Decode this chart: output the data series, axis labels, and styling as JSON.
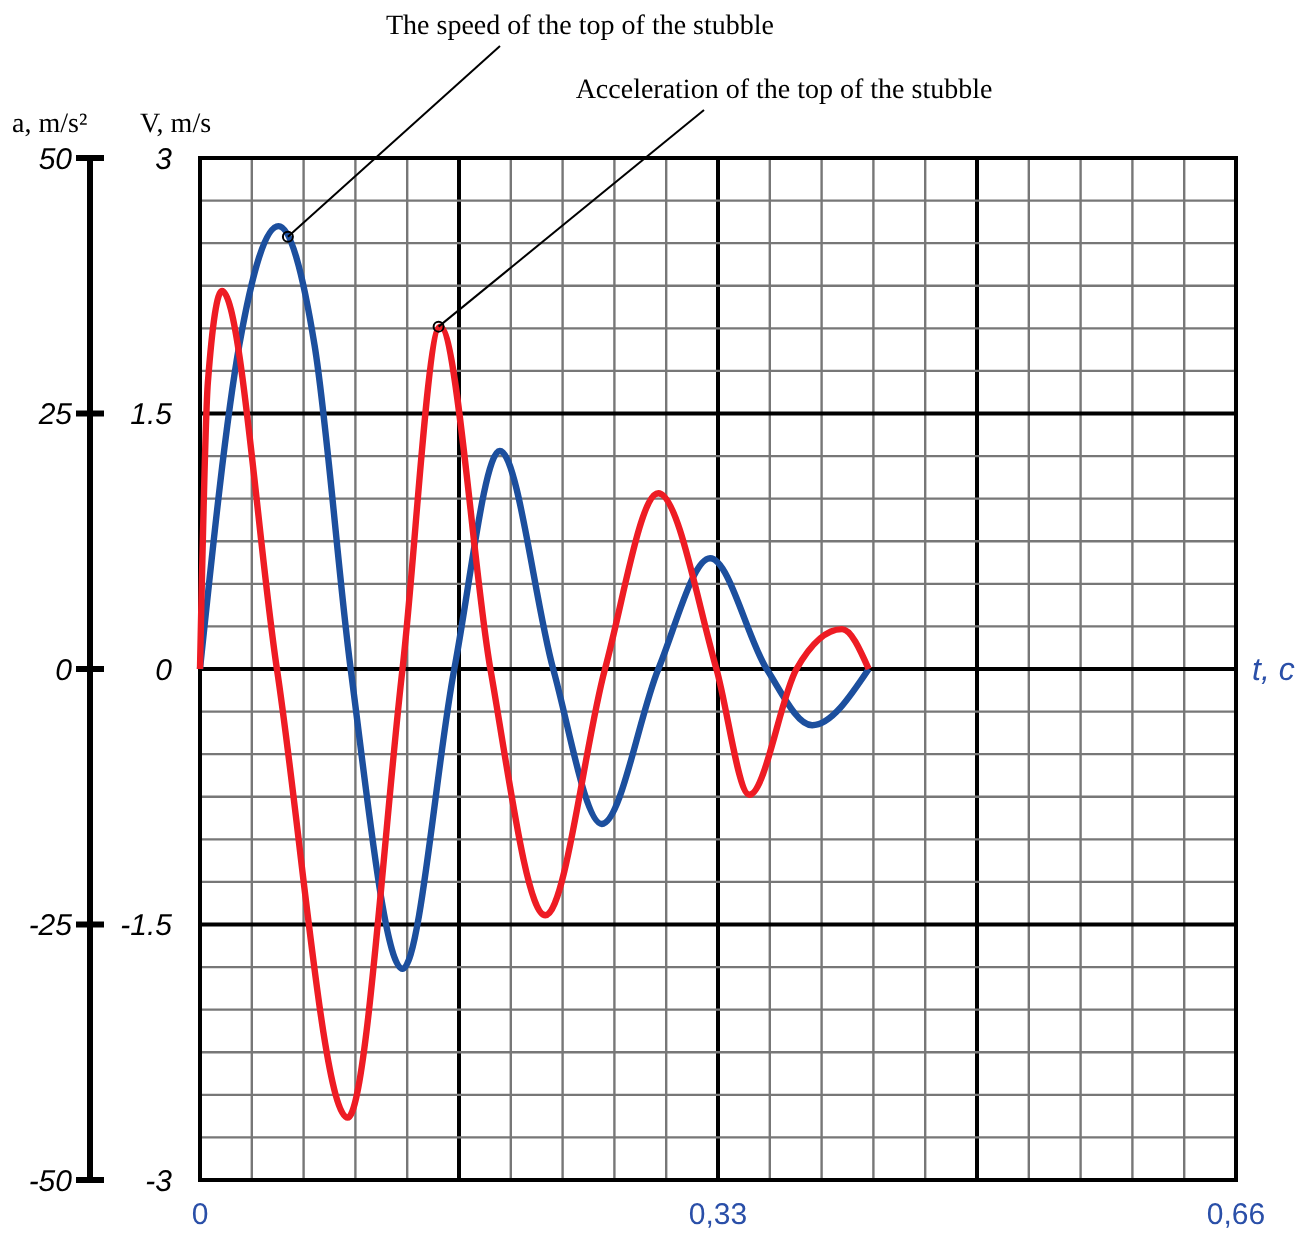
{
  "chart_data": {
    "type": "line",
    "ylabel": "a, m/s²",
    "y2label": "V, m/s",
    "xlabel": "t, c",
    "xlim": [
      0,
      0.66
    ],
    "xticks": [
      {
        "value": 0,
        "label": "0"
      },
      {
        "value": 0.165,
        "label": null
      },
      {
        "value": 0.33,
        "label": "0,33"
      },
      {
        "value": 0.495,
        "label": null
      },
      {
        "value": 0.66,
        "label": "0,66"
      }
    ],
    "ylim": [
      -50,
      50
    ],
    "yticks": [
      -50,
      -25,
      0,
      25,
      50
    ],
    "y2lim": [
      -3,
      3
    ],
    "y2ticks": [
      -3,
      -1.5,
      0,
      1.5,
      3
    ],
    "grid": true,
    "marker": "none",
    "line_style": "solid",
    "series": [
      {
        "color": "#1c4f9e",
        "axis": "y2",
        "x": [
          0,
          0.025,
          0.05,
          0.073,
          0.096,
          0.129,
          0.162,
          0.191,
          0.225,
          0.256,
          0.292,
          0.325,
          0.361,
          0.39,
          0.426
        ],
        "values": [
          0,
          1.9,
          2.6,
          1.9,
          0,
          -1.76,
          0,
          1.28,
          0,
          -0.91,
          0,
          0.65,
          0,
          -0.33,
          0
        ]
      },
      {
        "color": "#ee1c24",
        "x": [
          0,
          0.005,
          0.014,
          0.049,
          0.094,
          0.129,
          0.153,
          0.185,
          0.22,
          0.258,
          0.292,
          0.329,
          0.35,
          0.38,
          0.409,
          0.426
        ],
        "values": [
          0,
          28,
          37,
          0,
          -43.9,
          0,
          33.5,
          0,
          -24.1,
          0,
          17.2,
          0,
          -12.3,
          0,
          3.9,
          0
        ]
      }
    ],
    "annotations": [
      {
        "text": "The speed of the top of the stubble",
        "x": 0.056,
        "y": 42.3
      },
      {
        "text": "Acceleration of the top of the stubble",
        "x": 0.152,
        "y": 33.5
      }
    ]
  }
}
